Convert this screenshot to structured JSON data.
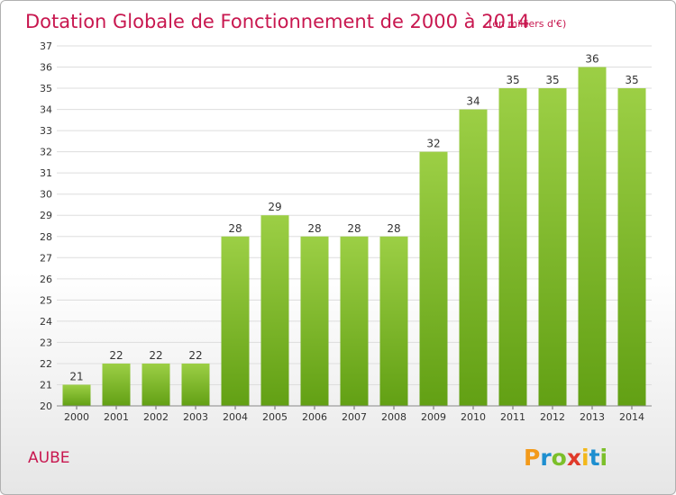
{
  "chart_data": {
    "type": "bar",
    "title": "Dotation Globale de Fonctionnement de 2000 à 2014",
    "subtitle": "(en milliers d'€)",
    "categories": [
      "2000",
      "2001",
      "2002",
      "2003",
      "2004",
      "2005",
      "2006",
      "2007",
      "2008",
      "2009",
      "2010",
      "2011",
      "2012",
      "2013",
      "2014"
    ],
    "values": [
      21,
      22,
      22,
      22,
      28,
      29,
      28,
      28,
      28,
      32,
      34,
      35,
      35,
      36,
      35
    ],
    "ylim": [
      20,
      37
    ],
    "yticks": [
      20,
      21,
      22,
      23,
      24,
      25,
      26,
      27,
      28,
      29,
      30,
      31,
      32,
      33,
      34,
      35,
      36,
      37
    ],
    "grid": true,
    "colors": {
      "bar_top": "#9ccf45",
      "bar_bottom": "#62a014",
      "title": "#c8174f"
    }
  },
  "commune": "AUBE",
  "logo": {
    "letters": [
      "P",
      "r",
      "o",
      "x",
      "i",
      "t",
      "i"
    ],
    "colors": [
      "#f39a1a",
      "#1e8fd0",
      "#7cbf2a",
      "#e03a2a",
      "#f3b81a",
      "#1e8fd0",
      "#7cbf2a"
    ]
  }
}
